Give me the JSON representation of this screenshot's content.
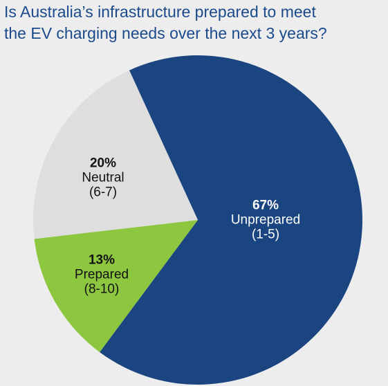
{
  "title": {
    "line1": "Is Australia’s infrastructure prepared to meet",
    "line2": "the EV charging needs over the next 3 years?"
  },
  "chart_data": {
    "type": "pie",
    "title": "Is Australia’s infrastructure prepared to meet the EV charging needs over the next 3 years?",
    "slices": [
      {
        "pct_label": "67%",
        "name": "Unprepared",
        "range": "(1-5)",
        "value": 67,
        "color": "#1a4580",
        "text_color": "#ffffff"
      },
      {
        "pct_label": "13%",
        "name": "Prepared",
        "range": "(8-10)",
        "value": 13,
        "color": "#8dc63f",
        "text_color": "#111111"
      },
      {
        "pct_label": "20%",
        "name": "Neutral",
        "range": "(6-7)",
        "value": 20,
        "color": "#dedede",
        "text_color": "#111111"
      }
    ]
  },
  "colors": {
    "title": "#1b4a8c",
    "background": "#ededed"
  }
}
